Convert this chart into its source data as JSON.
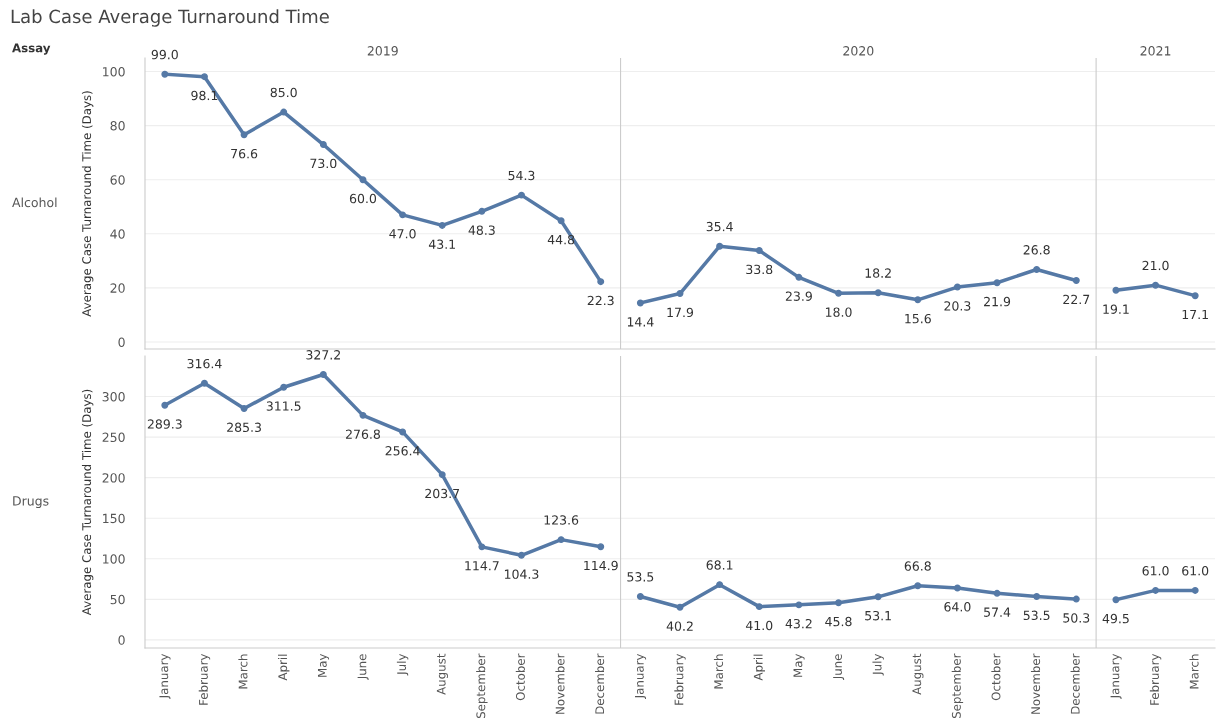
{
  "chart_data": [
    {
      "type": "line",
      "title": "Lab Case Average Turnaround Time",
      "ylabel": "Average Case Turnaround Time (Days)",
      "annotations": [
        "Assay",
        "2019",
        "2020",
        "2021",
        "Alcohol"
      ],
      "categories": [
        null,
        null,
        null,
        null,
        null,
        null,
        null,
        null,
        null,
        null,
        null,
        null,
        null,
        null,
        null,
        null,
        null,
        null,
        null,
        null,
        null,
        null,
        null,
        null,
        null,
        null,
        null
      ],
      "series": [
        {
          "color": "#5579a6",
          "values": [
            99.0,
            98.1,
            76.6,
            85.0,
            73.0,
            60.0,
            47.0,
            43.1,
            48.3,
            54.3,
            44.8,
            22.3,
            null,
            null,
            null,
            null,
            null,
            null,
            null,
            null,
            null,
            null,
            null,
            null,
            null,
            null,
            null
          ],
          "value_labels": [
            "99.0",
            "98.1",
            "76.6",
            "85.0",
            "73.0",
            "60.0",
            "47.0",
            "43.1",
            "48.3",
            "54.3",
            "44.8",
            "22.3",
            null,
            null,
            null,
            null,
            null,
            null,
            null,
            null,
            null,
            null,
            null,
            null,
            null,
            null,
            null
          ]
        },
        {
          "color": "#5579a6",
          "values": [
            null,
            null,
            null,
            null,
            null,
            null,
            null,
            null,
            null,
            null,
            null,
            null,
            14.4,
            17.9,
            35.4,
            33.8,
            23.9,
            18.0,
            18.2,
            15.6,
            20.3,
            21.9,
            26.8,
            22.7,
            null,
            null,
            null
          ],
          "value_labels": [
            null,
            null,
            null,
            null,
            null,
            null,
            null,
            null,
            null,
            null,
            null,
            null,
            "14.4",
            "17.9",
            "35.4",
            "33.8",
            "23.9",
            "18.0",
            "18.2",
            "15.6",
            "20.3",
            "21.9",
            "26.8",
            "22.7",
            null,
            null,
            null
          ]
        },
        {
          "color": "#5579a6",
          "values": [
            null,
            null,
            null,
            null,
            null,
            null,
            null,
            null,
            null,
            null,
            null,
            null,
            null,
            null,
            null,
            null,
            null,
            null,
            null,
            null,
            null,
            null,
            null,
            null,
            19.1,
            21.0,
            17.1
          ],
          "value_labels": [
            null,
            null,
            null,
            null,
            null,
            null,
            null,
            null,
            null,
            null,
            null,
            null,
            null,
            null,
            null,
            null,
            null,
            null,
            null,
            null,
            null,
            null,
            null,
            null,
            "19.1",
            "21.0",
            "17.1"
          ]
        }
      ],
      "ylim": [
        -2.6,
        105
      ],
      "yticks": [
        0,
        20,
        40,
        60,
        80,
        100
      ],
      "marker": "circle",
      "grid": "y",
      "tick_labels": "y"
    },
    {
      "type": "line",
      "ylabel": "Average Case Turnaround Time (Days)",
      "annotations": [
        "Drugs"
      ],
      "categories": [
        "January",
        "February",
        "March",
        "April",
        "May",
        "June",
        "July",
        "August",
        "September",
        "October",
        "November",
        "December",
        "January",
        "February",
        "March",
        "April",
        "May",
        "June",
        "July",
        "August",
        "September",
        "October",
        "November",
        "December",
        "January",
        "February",
        "March"
      ],
      "series": [
        {
          "color": "#5579a6",
          "values": [
            289.3,
            316.4,
            285.3,
            311.5,
            327.2,
            276.8,
            256.4,
            203.7,
            114.7,
            104.3,
            123.6,
            114.9,
            null,
            null,
            null,
            null,
            null,
            null,
            null,
            null,
            null,
            null,
            null,
            null,
            null,
            null,
            null
          ],
          "value_labels": [
            "289.3",
            "316.4",
            "285.3",
            "311.5",
            "327.2",
            "276.8",
            "256.4",
            "203.7",
            "114.7",
            "104.3",
            "123.6",
            "114.9",
            null,
            null,
            null,
            null,
            null,
            null,
            null,
            null,
            null,
            null,
            null,
            null,
            null,
            null,
            null
          ]
        },
        {
          "color": "#5579a6",
          "values": [
            null,
            null,
            null,
            null,
            null,
            null,
            null,
            null,
            null,
            null,
            null,
            null,
            53.5,
            40.2,
            68.1,
            41.0,
            43.2,
            45.8,
            53.1,
            66.8,
            64.0,
            57.4,
            53.5,
            50.3,
            null,
            null,
            null
          ],
          "value_labels": [
            null,
            null,
            null,
            null,
            null,
            null,
            null,
            null,
            null,
            null,
            null,
            null,
            "53.5",
            "40.2",
            "68.1",
            "41.0",
            "43.2",
            "45.8",
            "53.1",
            "66.8",
            "64.0",
            "57.4",
            "53.5",
            "50.3",
            null,
            null,
            null
          ]
        },
        {
          "color": "#5579a6",
          "values": [
            null,
            null,
            null,
            null,
            null,
            null,
            null,
            null,
            null,
            null,
            null,
            null,
            null,
            null,
            null,
            null,
            null,
            null,
            null,
            null,
            null,
            null,
            null,
            null,
            49.5,
            61.0,
            61.0
          ],
          "value_labels": [
            null,
            null,
            null,
            null,
            null,
            null,
            null,
            null,
            null,
            null,
            null,
            null,
            null,
            null,
            null,
            null,
            null,
            null,
            null,
            null,
            null,
            null,
            null,
            null,
            "49.5",
            "61.0",
            "61.0"
          ]
        }
      ],
      "ylim": [
        -10,
        350
      ],
      "yticks": [
        0,
        50,
        100,
        150,
        200,
        250,
        300
      ],
      "marker": "circle",
      "grid": "y"
    }
  ]
}
